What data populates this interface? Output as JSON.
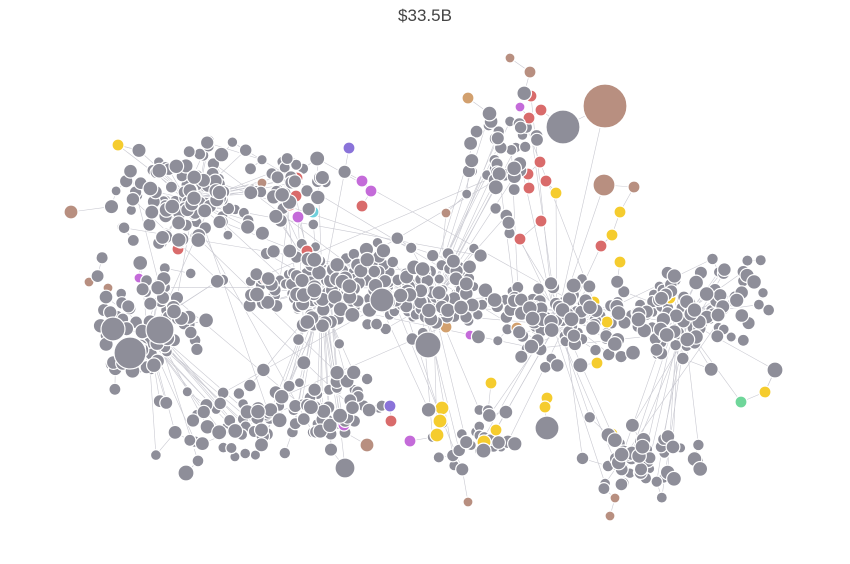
{
  "title": "$33.5B",
  "colors": {
    "default": "#8e8e99",
    "red": "#d96b6b",
    "yellow": "#f5cc2e",
    "purple": "#c46bd9",
    "brown": "#b88f80",
    "tan": "#d2a06e",
    "cyan": "#6fd0dc",
    "indigo": "#8a73d9",
    "green": "#6fd69a",
    "edge": "#c9c9d1"
  }
}
